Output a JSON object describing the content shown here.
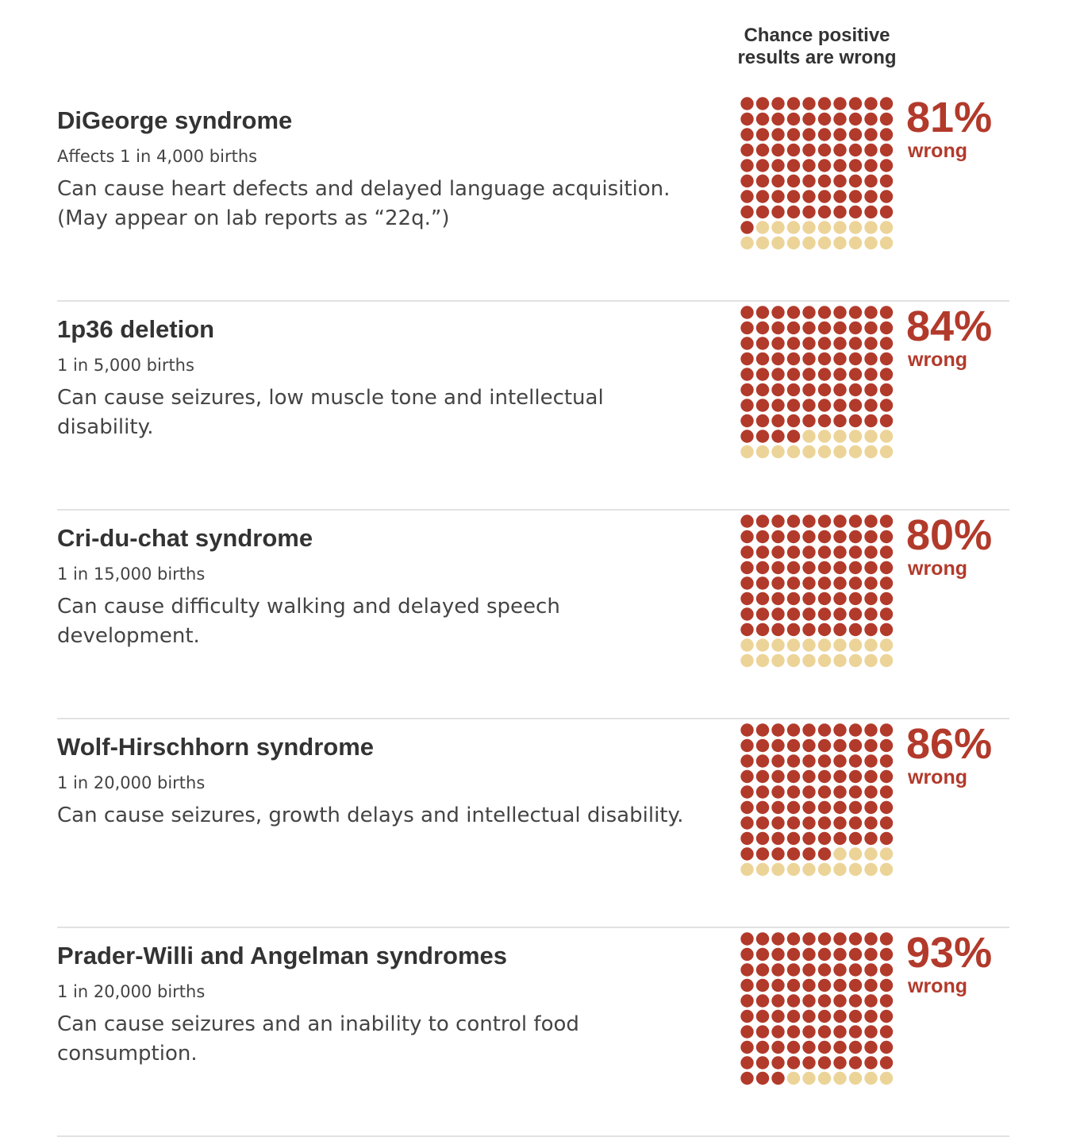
{
  "header": {
    "line1": "Chance positive",
    "line2": "results are wrong"
  },
  "colors": {
    "wrong": "#b23a2b",
    "right": "#ecd498",
    "text": "#333333",
    "rule": "#e2e2e2"
  },
  "conditions": [
    {
      "title": "DiGeorge syndrome",
      "prevalence": "Affects 1 in 4,000 births",
      "description": "Can cause heart defects and delayed language acquisition. (May appear on lab reports as “22q.”)",
      "percent_label": "81%",
      "wrong_label": "wrong"
    },
    {
      "title": "1p36 deletion",
      "prevalence": "1 in 5,000 births",
      "description": "Can cause seizures, low muscle tone and intellectual disability.",
      "percent_label": "84%",
      "wrong_label": "wrong"
    },
    {
      "title": "Cri-du-chat syndrome",
      "prevalence": "1 in 15,000 births",
      "description": "Can cause difficulty walking and delayed speech development.",
      "percent_label": "80%",
      "wrong_label": "wrong"
    },
    {
      "title": "Wolf-Hirschhorn syndrome",
      "prevalence": "1 in 20,000 births",
      "description": "Can cause seizures, growth delays and intellectual disability.",
      "percent_label": "86%",
      "wrong_label": "wrong"
    },
    {
      "title": "Prader-Willi and Angelman syndromes",
      "prevalence": "1 in 20,000 births",
      "description": "Can cause seizures and an inability to control food consumption.",
      "percent_label": "93%",
      "wrong_label": "wrong"
    }
  ],
  "chart_data": {
    "type": "waffle",
    "title": "Chance positive results are wrong",
    "total_per_grid": 100,
    "categories": [
      "DiGeorge syndrome",
      "1p36 deletion",
      "Cri-du-chat syndrome",
      "Wolf-Hirschhorn syndrome",
      "Prader-Willi and Angelman syndromes"
    ],
    "series": [
      {
        "name": "wrong",
        "values": [
          81,
          84,
          80,
          86,
          93
        ]
      }
    ]
  }
}
